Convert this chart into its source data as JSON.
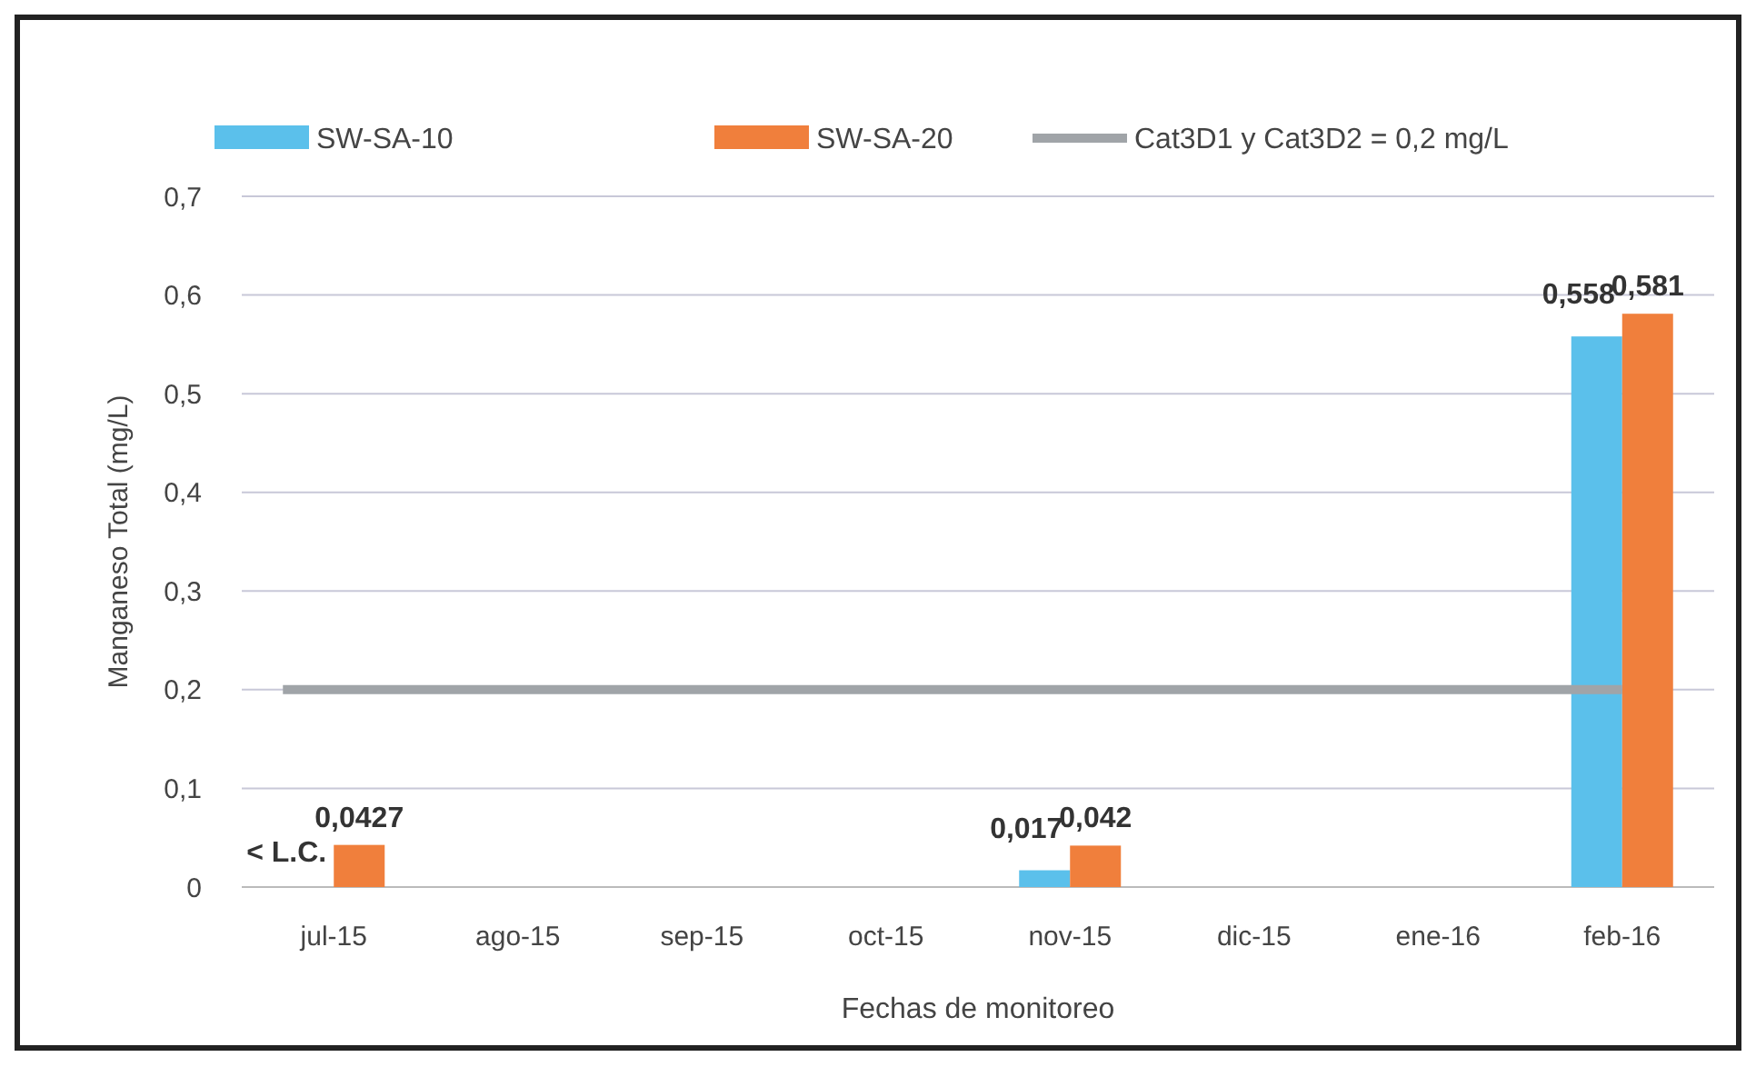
{
  "chart_data": {
    "type": "bar",
    "xlabel": "Fechas de monitoreo",
    "ylabel": "Manganeso Total (mg/L)",
    "categories": [
      "jul-15",
      "ago-15",
      "sep-15",
      "oct-15",
      "nov-15",
      "dic-15",
      "ene-16",
      "feb-16"
    ],
    "series": [
      {
        "name": "SW-SA-10",
        "color": "#5bc0eb",
        "values": [
          null,
          null,
          null,
          null,
          0.017,
          null,
          null,
          0.558
        ],
        "value_labels": [
          "< L.C.",
          null,
          null,
          null,
          "0,017",
          null,
          null,
          "0,558"
        ]
      },
      {
        "name": "SW-SA-20",
        "color": "#f07f3c",
        "values": [
          0.0427,
          null,
          null,
          null,
          0.042,
          null,
          null,
          0.581
        ],
        "value_labels": [
          "0,0427",
          null,
          null,
          null,
          "0,042",
          null,
          null,
          "0,581"
        ]
      }
    ],
    "ref_lines": [
      {
        "axis": "y",
        "value": 0.2,
        "label": "Cat3D1 y Cat3D2 = 0,2 mg/L",
        "color": "#a0a4a8"
      }
    ],
    "ylim": [
      0,
      0.7
    ],
    "yticks": [
      0,
      {
        "value": 0.1,
        "label": "0,1"
      },
      {
        "value": 0.2,
        "label": "0,2"
      },
      {
        "value": 0.3,
        "label": "0,3"
      },
      {
        "value": 0.4,
        "label": "0,4"
      },
      {
        "value": 0.5,
        "label": "0,5"
      },
      {
        "value": 0.6,
        "label": "0,6"
      },
      {
        "value": 0.7,
        "label": "0,7"
      }
    ],
    "grid": "y",
    "legend": "top"
  }
}
